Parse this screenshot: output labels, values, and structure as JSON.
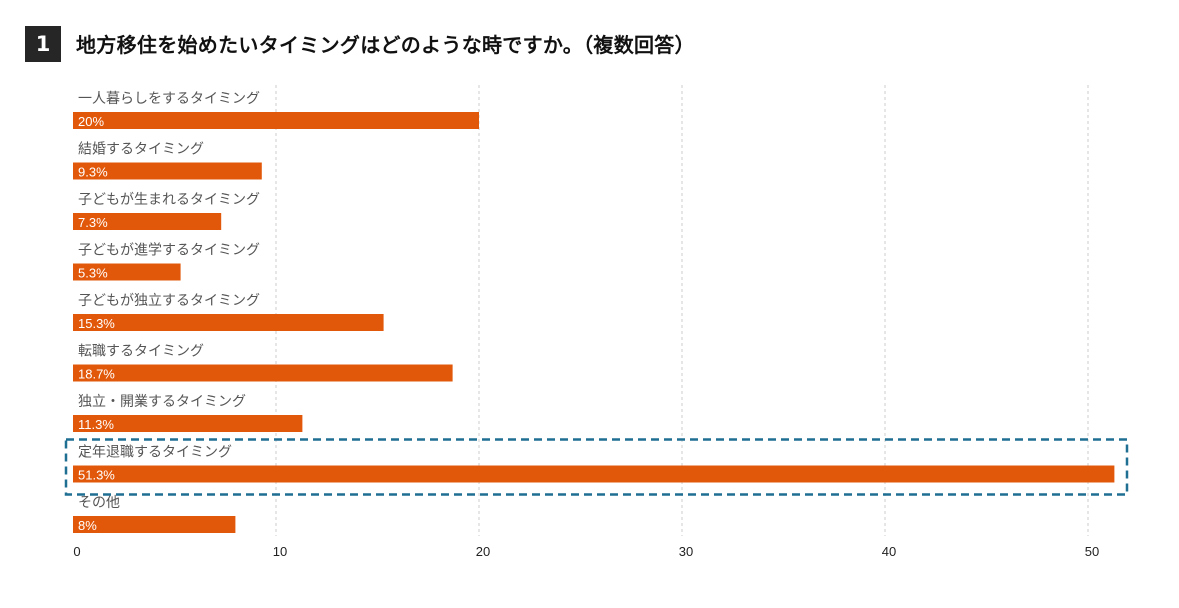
{
  "header": {
    "number": "1",
    "title": "地方移住を始めたいタイミングはどのような時ですか。（複数回答）"
  },
  "colors": {
    "bar": "#E2580A",
    "bar_label": "#ffffff",
    "category_text": "#555555",
    "grid": "#cccccc",
    "highlight": "#1F6F93",
    "tick_text": "#222222",
    "badge_bg": "#262626"
  },
  "chart_data": {
    "type": "bar",
    "orientation": "horizontal",
    "title": "地方移住を始めたいタイミングはどのような時ですか。（複数回答）",
    "xlabel": "",
    "ylabel": "",
    "xlim": [
      0,
      52
    ],
    "grid": true,
    "categories": [
      "一人暮らしをするタイミング",
      "結婚するタイミング",
      "子どもが生まれるタイミング",
      "子どもが進学するタイミング",
      "子どもが独立するタイミング",
      "転職するタイミング",
      "独立・開業するタイミング",
      "定年退職するタイミング",
      "その他"
    ],
    "values": [
      20,
      9.3,
      7.3,
      5.3,
      15.3,
      18.7,
      11.3,
      51.3,
      8
    ],
    "value_labels": [
      "20%",
      "9.3%",
      "7.3%",
      "5.3%",
      "15.3%",
      "18.7%",
      "11.3%",
      "51.3%",
      "8%"
    ],
    "x_ticks": [
      0,
      10,
      20,
      30,
      40,
      50
    ],
    "x_tick_labels": [
      "0",
      "10",
      "20",
      "30",
      "40",
      "50"
    ],
    "highlight_index": 7
  }
}
